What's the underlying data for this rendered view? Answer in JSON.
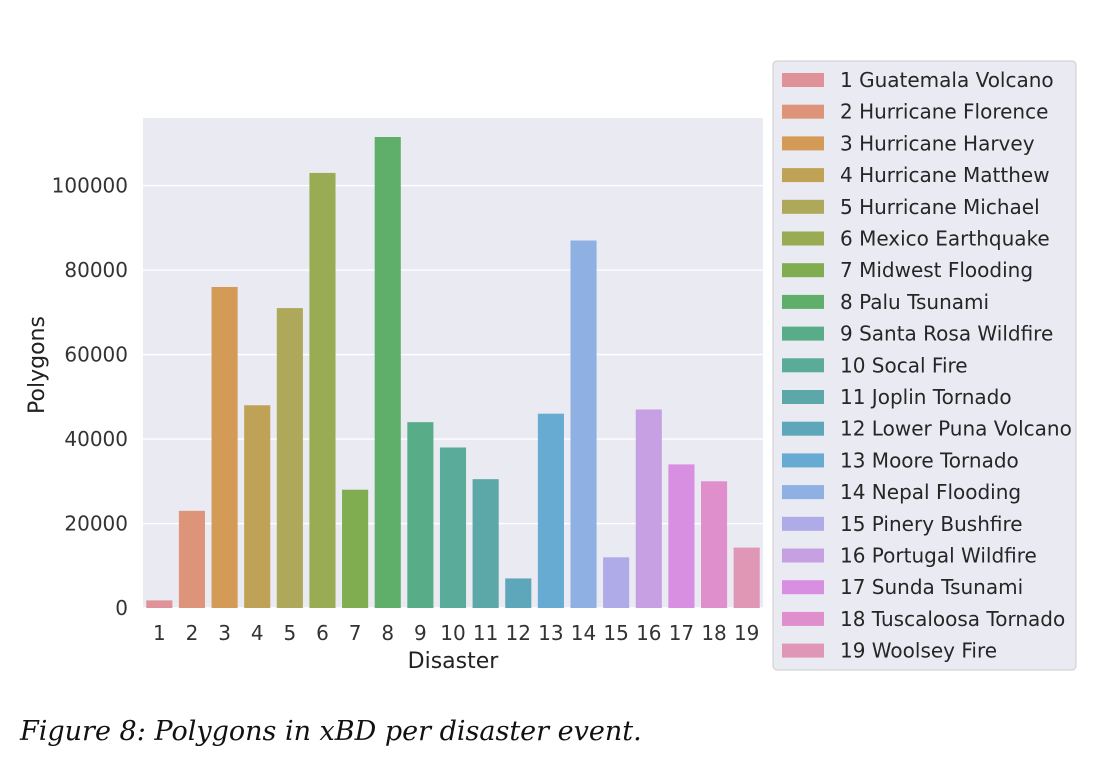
{
  "caption": "Figure 8: Polygons in xBD per disaster event.",
  "chart_data": {
    "type": "bar",
    "title": "",
    "xlabel": "Disaster",
    "ylabel": "Polygons",
    "ylim": [
      0,
      116000
    ],
    "yticks": [
      0,
      20000,
      40000,
      60000,
      80000,
      100000
    ],
    "grid": true,
    "legend_placement": "right, outside",
    "categories": [
      "1",
      "2",
      "3",
      "4",
      "5",
      "6",
      "7",
      "8",
      "9",
      "10",
      "11",
      "12",
      "13",
      "14",
      "15",
      "16",
      "17",
      "18",
      "19"
    ],
    "values": [
      1800,
      23000,
      76000,
      48000,
      71000,
      103000,
      28000,
      111500,
      44000,
      38000,
      30500,
      7000,
      46000,
      87000,
      12000,
      47000,
      34000,
      30000,
      14300
    ],
    "legend": [
      "1 Guatemala Volcano",
      "2 Hurricane Florence",
      "3 Hurricane Harvey",
      "4 Hurricane Matthew",
      "5 Hurricane Michael",
      "6 Mexico Earthquake",
      "7 Midwest Flooding",
      "8 Palu Tsunami",
      "9 Santa Rosa Wildfire",
      "10 Socal Fire",
      "11 Joplin Tornado",
      "12 Lower Puna Volcano",
      "13 Moore Tornado",
      "14 Nepal Flooding",
      "15 Pinery Bushfire",
      "16 Portugal Wildfire",
      "17 Sunda Tsunami",
      "18 Tuscaloosa Tornado",
      "19 Woolsey Fire"
    ],
    "colors": [
      "#e0929a",
      "#dd9478",
      "#d49b56",
      "#c0a257",
      "#aea95a",
      "#9aac53",
      "#7fad4f",
      "#5fae6a",
      "#58ad88",
      "#5aab9a",
      "#5ca8a9",
      "#5ea7ba",
      "#67aad2",
      "#8fb0e3",
      "#afaae8",
      "#c6a0e3",
      "#d88fe1",
      "#df8fcc",
      "#e097b6"
    ],
    "background": "#eaeaf2"
  }
}
